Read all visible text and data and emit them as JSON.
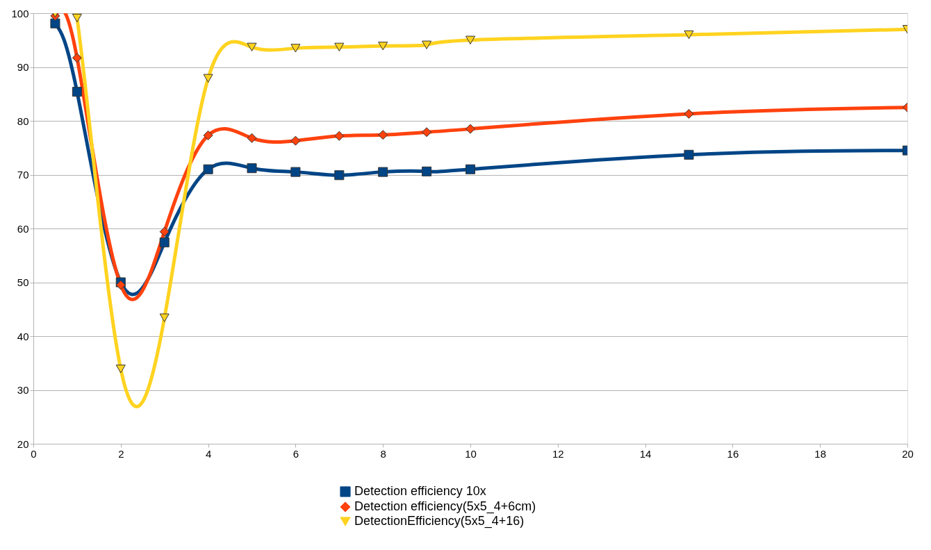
{
  "chart_data": {
    "type": "line",
    "x": [
      0.5,
      1,
      2,
      3,
      4,
      5,
      6,
      7,
      8,
      9,
      10,
      15,
      20
    ],
    "series": [
      {
        "name": "Detection efficiency 10x",
        "color": "#004586",
        "marker": "square",
        "values": [
          98.1,
          85.4,
          50,
          57.4,
          71,
          71.2,
          70.5,
          69.9,
          70.5,
          70.6,
          71,
          73.7,
          74.5
        ]
      },
      {
        "name": "Detection efficiency(5x5_4+6cm)",
        "color": "#ff420e",
        "marker": "diamond",
        "values": [
          99.5,
          91.7,
          49.5,
          59.4,
          77.3,
          76.8,
          76.3,
          77.2,
          77.4,
          77.9,
          78.5,
          81.3,
          82.5
        ]
      },
      {
        "name": "DetectionEfficiency(5x5_4+16)",
        "color": "#ffd320",
        "marker": "triangle",
        "values": [
          100,
          99.1,
          33.9,
          43.4,
          87.9,
          93.7,
          93.5,
          93.7,
          93.9,
          94.1,
          95,
          96,
          97
        ]
      }
    ],
    "xlim": [
      0,
      20
    ],
    "xticks": [
      0,
      2,
      4,
      6,
      8,
      10,
      12,
      14,
      16,
      18,
      20
    ],
    "ylim": [
      20,
      100
    ],
    "yticks": [
      20,
      30,
      40,
      50,
      60,
      70,
      80,
      90,
      100
    ],
    "grid": "y",
    "legend": "bottom",
    "line_style": "solid"
  }
}
